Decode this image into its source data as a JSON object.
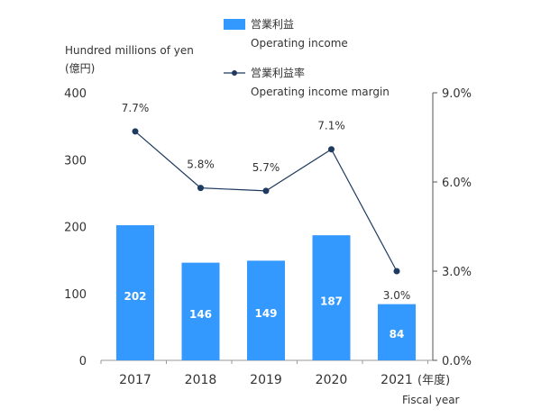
{
  "chart_data": {
    "type": "bar",
    "categories": [
      "2017",
      "2018",
      "2019",
      "2020",
      "2021"
    ],
    "x_unit_label": "(年度)",
    "xlabel": "Fiscal year",
    "ylabel_line1": "Hundred millions of yen",
    "ylabel_line2": "(億円)",
    "ylim": [
      0,
      400
    ],
    "yticks": [
      "0",
      "100",
      "200",
      "300",
      "400"
    ],
    "y2lim": [
      0,
      9
    ],
    "y2ticks": [
      "0.0%",
      "3.0%",
      "6.0%",
      "9.0%"
    ],
    "grid": false,
    "legend_position": "top-center",
    "series": [
      {
        "name": "営業利益",
        "name_en": "Operating income",
        "kind": "bar",
        "axis": "left",
        "color": "#3399ff",
        "values": [
          202,
          146,
          149,
          187,
          84
        ],
        "labels": [
          "202",
          "146",
          "149",
          "187",
          "84"
        ]
      },
      {
        "name": "営業利益率",
        "name_en": "Operating income margin",
        "kind": "line",
        "axis": "right",
        "color": "#1e3a5f",
        "values": [
          7.7,
          5.8,
          5.7,
          7.1,
          3.0
        ],
        "labels": [
          "7.7%",
          "5.8%",
          "5.7%",
          "7.1%",
          "3.0%"
        ]
      }
    ]
  }
}
